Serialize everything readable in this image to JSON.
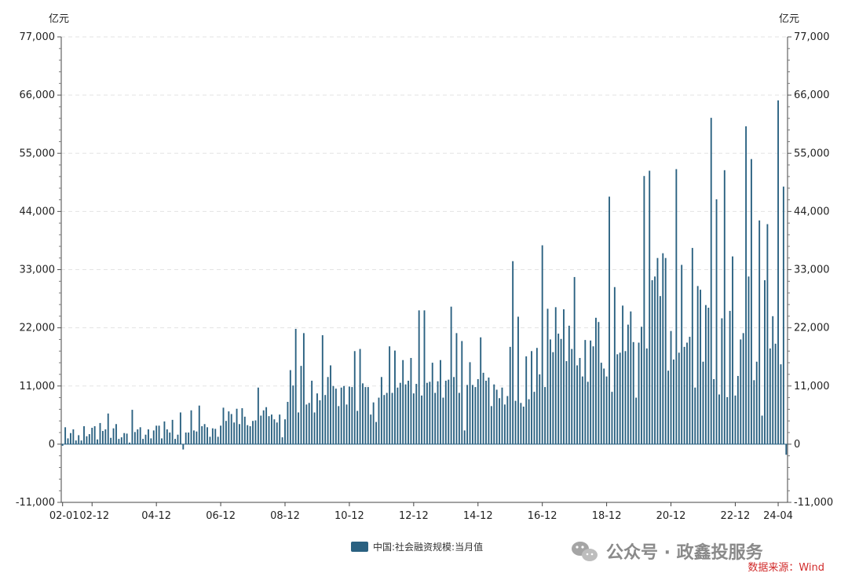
{
  "chart_data": {
    "type": "bar",
    "unit_left": "亿元",
    "unit_right": "亿元",
    "ylim": [
      -11000,
      77000
    ],
    "yticks": [
      -11000,
      0,
      11000,
      22000,
      33000,
      44000,
      55000,
      66000,
      77000
    ],
    "ytick_labels": [
      "-11,000",
      "0",
      "11,000",
      "22,000",
      "33,000",
      "44,000",
      "55,000",
      "66,000",
      "77,000"
    ],
    "xtick_labels": [
      "02-01",
      "02-12",
      "04-12",
      "06-12",
      "08-12",
      "10-12",
      "12-12",
      "14-12",
      "16-12",
      "18-12",
      "20-12",
      "22-12",
      "24-04"
    ],
    "xtick_index": [
      0,
      11,
      35,
      59,
      83,
      107,
      131,
      155,
      179,
      203,
      227,
      251,
      267
    ],
    "legend_placement": "bottom-center",
    "grid": true,
    "color": "#2a6181",
    "series": [
      {
        "name": "中国:社会融资规模:当月值",
        "start": "2002-01",
        "values": [
          -300,
          3200,
          1100,
          2100,
          2800,
          700,
          1700,
          700,
          3400,
          1500,
          1900,
          3100,
          3400,
          900,
          4000,
          2500,
          2800,
          5800,
          1200,
          3000,
          3800,
          1000,
          1300,
          2100,
          2000,
          300,
          6500,
          2300,
          2800,
          3200,
          1000,
          1800,
          2800,
          1100,
          2600,
          3500,
          3500,
          1100,
          4300,
          2800,
          2200,
          4600,
          1000,
          1800,
          6000,
          -1000,
          2200,
          2200,
          6400,
          2600,
          2400,
          7300,
          3400,
          3800,
          3200,
          1400,
          3000,
          2900,
          1400,
          3500,
          6900,
          4400,
          6200,
          5700,
          4100,
          6700,
          3800,
          6800,
          5200,
          3600,
          3400,
          4400,
          4500,
          10700,
          5400,
          6400,
          7000,
          5300,
          5600,
          4700,
          4100,
          5600,
          1300,
          4700,
          8000,
          14000,
          11100,
          21800,
          6000,
          14800,
          21000,
          7500,
          7800,
          12000,
          6000,
          9600,
          8300,
          20600,
          9300,
          12700,
          14900,
          11000,
          10500,
          7200,
          10700,
          11000,
          7500,
          10900,
          10800,
          17600,
          6300,
          18000,
          11500,
          10800,
          10800,
          5600,
          7900,
          4200,
          8800,
          12700,
          9300,
          9700,
          18500,
          9700,
          17700,
          10700,
          11600,
          15900,
          11300,
          12000,
          16300,
          9600,
          11400,
          25300,
          9200,
          25300,
          11600,
          11800,
          15400,
          9700,
          11900,
          15900,
          8800,
          12000,
          12200,
          26000,
          12700,
          21000,
          9700,
          19500,
          2600,
          11200,
          15500,
          11200,
          10800,
          12300,
          20200,
          13500,
          12000,
          12600,
          7200,
          11300,
          10300,
          8700,
          10700,
          7500,
          9100,
          18400,
          34600,
          8200,
          24100,
          7800,
          7100,
          16600,
          8500,
          17600,
          9900,
          18200,
          13200,
          37600,
          10800,
          25600,
          19800,
          17400,
          25900,
          20900,
          19900,
          25500,
          15700,
          22400,
          18000,
          31600,
          14900,
          16300,
          12800,
          19700,
          11800,
          19600,
          18500,
          23900,
          23100,
          15400,
          14300,
          12800,
          46800,
          9900,
          29700,
          17000,
          17300,
          26200,
          17600,
          22600,
          25100,
          19300,
          8800,
          19200,
          22200,
          50700,
          18100,
          51700,
          31000,
          31700,
          35200,
          28000,
          36100,
          35200,
          13900,
          21400,
          16000,
          52000,
          17300,
          33900,
          18400,
          19200,
          20300,
          37100,
          10700,
          29900,
          29200,
          15600,
          26300,
          25800,
          61700,
          12300,
          46300,
          9400,
          23800,
          51800,
          8900,
          25200,
          35500,
          9200,
          12900,
          19800,
          21000,
          60100,
          31700,
          53900,
          12100,
          15600,
          42300,
          5400,
          31000,
          41600,
          18100,
          24200,
          19000,
          65000,
          15100,
          48700,
          -2000
        ]
      }
    ]
  },
  "watermark": {
    "icon": "wechat-icon",
    "text": "公众号 · 政鑫投服务"
  },
  "source_text": "数据来源：Wind"
}
